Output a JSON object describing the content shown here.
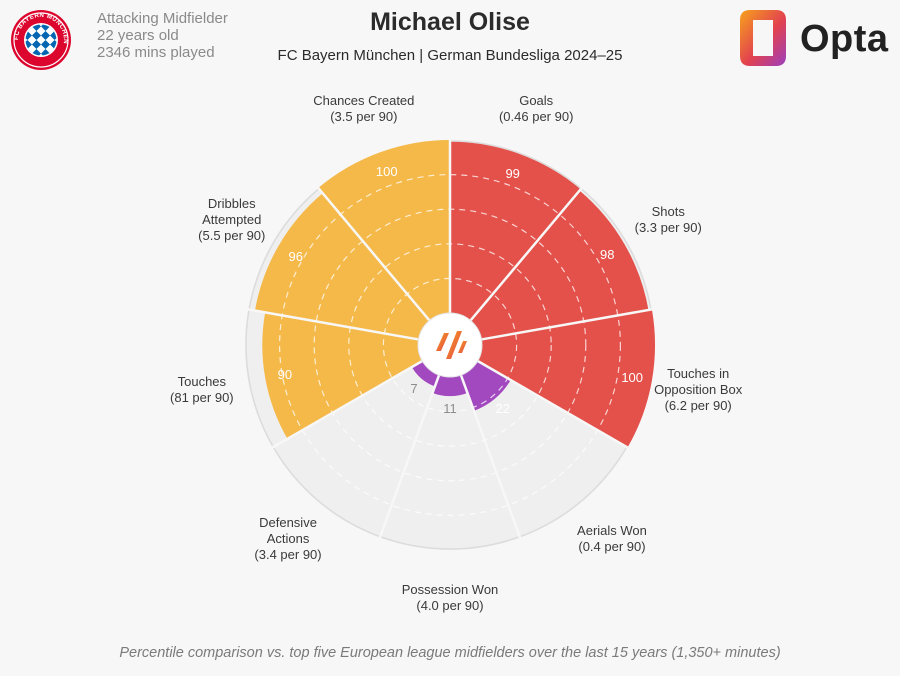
{
  "header": {
    "position": "Attacking Midfielder",
    "age": "22 years old",
    "minutes": "2346 mins played",
    "title": "Michael Olise",
    "subtitle": "FC Bayern München | German Bundesliga 2024–25",
    "logo_text": "Opta"
  },
  "crest": {
    "text": "FC BAYERN MÜNCHEN"
  },
  "footer": "Percentile comparison vs. top five European league midfielders over the last 15 years (1,350+ minutes)",
  "colors": {
    "attacking": "#f5b94a",
    "shooting": "#e4504a",
    "defending": "#a349c0",
    "background": "#f7f7f7",
    "empty_slice": "#efefef"
  },
  "chart_data": {
    "type": "pie",
    "scale_max": 100,
    "series": [
      {
        "metric": "Goals",
        "per90": "(0.46 per 90)",
        "percentile": 99,
        "group": "shooting"
      },
      {
        "metric": "Shots",
        "per90": "(3.3 per 90)",
        "percentile": 98,
        "group": "shooting"
      },
      {
        "metric": "Touches in Opposition Box",
        "per90": "(6.2 per 90)",
        "percentile": 100,
        "group": "shooting"
      },
      {
        "metric": "Aerials Won",
        "per90": "(0.4 per 90)",
        "percentile": 22,
        "group": "defending"
      },
      {
        "metric": "Possession Won",
        "per90": "(4.0 per 90)",
        "percentile": 11,
        "group": "defending"
      },
      {
        "metric": "Defensive Actions",
        "per90": "(3.4 per 90)",
        "percentile": 7,
        "group": "defending"
      },
      {
        "metric": "Touches",
        "per90": "(81 per 90)",
        "percentile": 90,
        "group": "attacking"
      },
      {
        "metric": "Dribbles Attempted",
        "per90": "(5.5 per 90)",
        "percentile": 96,
        "group": "attacking"
      },
      {
        "metric": "Chances Created",
        "per90": "(3.5 per 90)",
        "percentile": 100,
        "group": "attacking"
      }
    ]
  }
}
